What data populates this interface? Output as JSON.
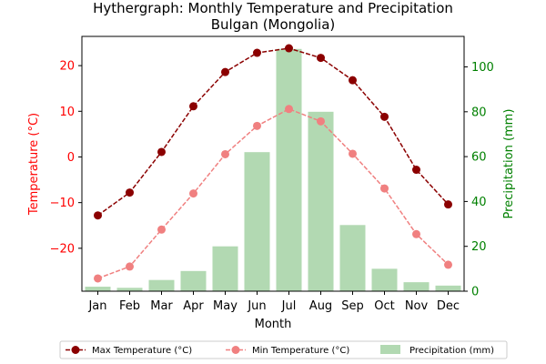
{
  "chart_data": {
    "type": "bar+line",
    "title": "Hythergraph: Monthly Temperature and Precipitation",
    "subtitle": "Bulgan (Mongolia)",
    "xlabel": "Month",
    "ylabel_left": "Temperature (°C)",
    "ylabel_right": "Precipitation (mm)",
    "categories": [
      "Jan",
      "Feb",
      "Mar",
      "Apr",
      "May",
      "Jun",
      "Jul",
      "Aug",
      "Sep",
      "Oct",
      "Nov",
      "Dec"
    ],
    "ylim_left": [
      -29.4,
      26.4
    ],
    "ylim_right": [
      0,
      113.6
    ],
    "yticks_left": [
      "−20",
      "−10",
      "0",
      "10",
      "20"
    ],
    "yticks_left_values": [
      -20,
      -10,
      0,
      10,
      20
    ],
    "yticks_right": [
      "0",
      "20",
      "40",
      "60",
      "80",
      "100"
    ],
    "yticks_right_values": [
      0,
      20,
      40,
      60,
      80,
      100
    ],
    "series": [
      {
        "name": "Max Temperature (°C)",
        "kind": "line",
        "axis": "left",
        "color": "#8b0000",
        "values": [
          -12.8,
          -7.8,
          1.1,
          11.1,
          18.6,
          22.8,
          23.8,
          21.7,
          16.8,
          8.8,
          -2.8,
          -10.4
        ]
      },
      {
        "name": "Min Temperature (°C)",
        "kind": "line",
        "axis": "left",
        "color": "#f08080",
        "values": [
          -26.6,
          -24.0,
          -15.9,
          -8.0,
          0.6,
          6.8,
          10.5,
          7.8,
          0.7,
          -6.9,
          -16.9,
          -23.6
        ]
      },
      {
        "name": "Precipitation (mm)",
        "kind": "bar",
        "axis": "right",
        "color": "#b2d9b2",
        "values": [
          2,
          1.5,
          5,
          9,
          20,
          62,
          108,
          80,
          29.5,
          10,
          4,
          2.5
        ]
      }
    ],
    "colors": {
      "left_axis": "#ff0000",
      "right_axis": "#008000"
    }
  }
}
